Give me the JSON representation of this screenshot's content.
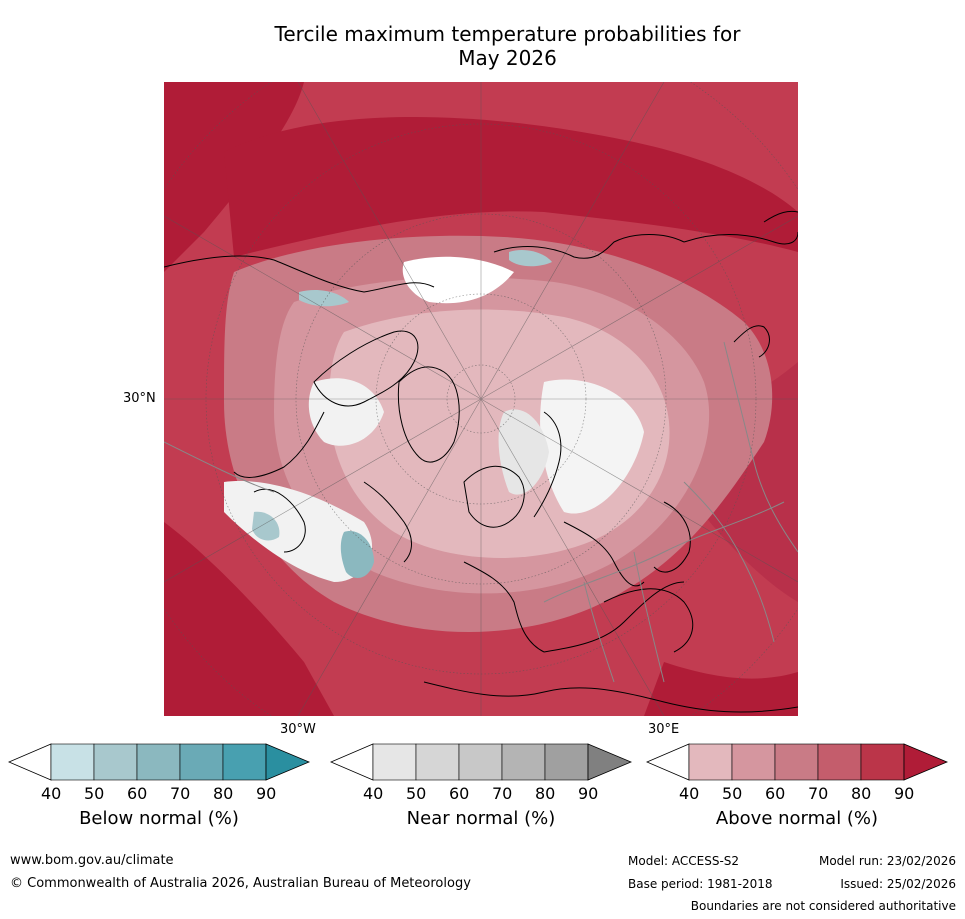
{
  "title_line1": "Tercile maximum temperature probabilities for",
  "title_line2": "May 2026",
  "map": {
    "lat_label": "30°N",
    "lon_label_left": "30°W",
    "lon_label_right": "30°E"
  },
  "chart_data": {
    "type": "heatmap",
    "title": "Tercile maximum temperature probabilities for May 2026",
    "projection": "north-polar-stereographic",
    "colorbars": [
      {
        "name": "Below normal (%)",
        "ticks": [
          "40",
          "50",
          "60",
          "70",
          "80",
          "90"
        ],
        "colors": [
          "#ffffff",
          "#c8e1e6",
          "#a8c8cd",
          "#8bb8bf",
          "#6aaab6",
          "#48a0b0",
          "#2a8fa0"
        ]
      },
      {
        "name": "Near normal (%)",
        "ticks": [
          "40",
          "50",
          "60",
          "70",
          "80",
          "90"
        ],
        "colors": [
          "#ffffff",
          "#e6e6e6",
          "#d6d6d6",
          "#c8c8c8",
          "#b4b4b4",
          "#a0a0a0",
          "#808080"
        ]
      },
      {
        "name": "Above normal (%)",
        "ticks": [
          "40",
          "50",
          "60",
          "70",
          "80",
          "90"
        ],
        "colors": [
          "#ffffff",
          "#e3b8bd",
          "#d5969f",
          "#c97b86",
          "#c45d6c",
          "#bb3549",
          "#b01c37"
        ]
      }
    ]
  },
  "footer": {
    "url": "www.bom.gov.au/climate",
    "copyright": "© Commonwealth of Australia 2026, Australian Bureau of Meteorology",
    "model": "Model: ACCESS-S2",
    "model_run": "Model run: 23/02/2026",
    "base_period": "Base period: 1981-2018",
    "issued": "Issued: 25/02/2026",
    "disclaimer": "Boundaries are not considered authoritative"
  }
}
